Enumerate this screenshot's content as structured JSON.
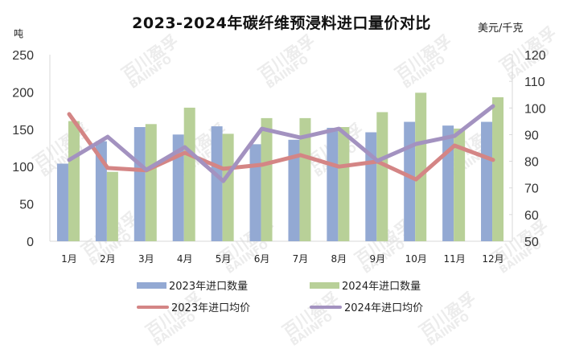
{
  "header": {
    "title": "2023-2024年碳纤维预浸料进口量价对比",
    "left_unit": "吨",
    "right_unit": "美元/千克"
  },
  "colors": {
    "bar_2023": "#93a9d3",
    "bar_2024": "#b8d098",
    "line_2023": "#d48585",
    "line_2024": "#a392c0",
    "axis": "#d9d9d9"
  },
  "watermark": {
    "cn": "百川盈孚",
    "en": "BAIINFO"
  },
  "legend": [
    {
      "label": "2023年进口数量",
      "kind": "bar",
      "color": "#93a9d3"
    },
    {
      "label": "2024年进口数量",
      "kind": "bar",
      "color": "#b8d098"
    },
    {
      "label": "2023年进口均价",
      "kind": "line",
      "color": "#d48585"
    },
    {
      "label": "2024年进口均价",
      "kind": "line",
      "color": "#a392c0"
    }
  ],
  "chart_data": {
    "type": "bar+line",
    "title": "2023-2024年碳纤维预浸料进口量价对比",
    "xlabel": "",
    "ylabel": "吨",
    "y2label": "美元/千克",
    "categories": [
      "1月",
      "2月",
      "3月",
      "4月",
      "5月",
      "6月",
      "7月",
      "8月",
      "9月",
      "10月",
      "11月",
      "12月"
    ],
    "ylim": [
      0,
      250
    ],
    "yticks": [
      0,
      50,
      100,
      150,
      200,
      250
    ],
    "y2lim": [
      50,
      120
    ],
    "y2ticks": [
      50,
      60,
      70,
      80,
      90,
      100,
      110,
      120
    ],
    "grid": false,
    "legend_position": "bottom",
    "series": [
      {
        "name": "2023年进口数量",
        "type": "bar",
        "axis": "left",
        "values": [
          104,
          134,
          153,
          143,
          154,
          130,
          136,
          152,
          146,
          160,
          155,
          160
        ]
      },
      {
        "name": "2024年进口数量",
        "type": "bar",
        "axis": "left",
        "values": [
          161,
          93,
          157,
          179,
          144,
          165,
          165,
          153,
          173,
          199,
          151,
          193
        ]
      },
      {
        "name": "2023年进口均价",
        "type": "line",
        "axis": "right",
        "values": [
          97.7,
          77.5,
          76.6,
          83.2,
          77.2,
          78.7,
          82.3,
          78.0,
          79.9,
          73.2,
          85.9,
          80.5
        ]
      },
      {
        "name": "2024年进口均价",
        "type": "line",
        "axis": "right",
        "values": [
          80.5,
          89.2,
          76.8,
          85.3,
          72.6,
          92.2,
          88.9,
          92.2,
          80.2,
          86.5,
          89.5,
          100.7
        ]
      }
    ]
  }
}
